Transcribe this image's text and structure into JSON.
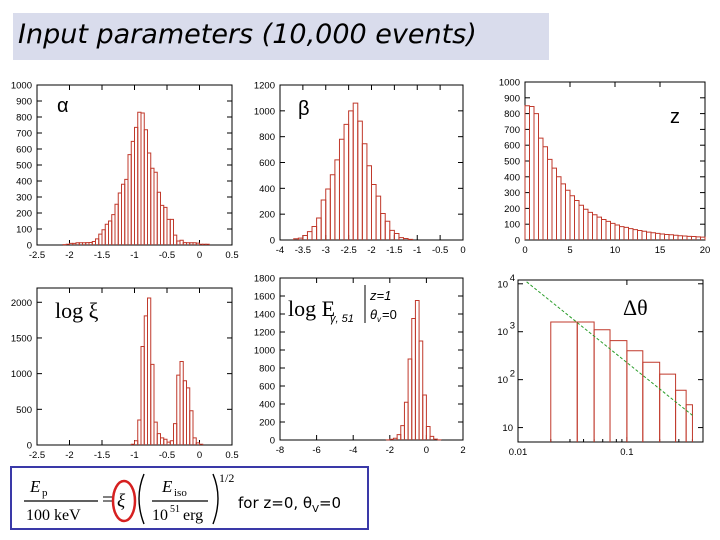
{
  "title": "Input parameters (10,000 events)",
  "footnote": {
    "text": "for z=0, θ",
    "subscript": "V",
    "suffix": "=0"
  },
  "formula": {
    "lhs_num": "E",
    "lhs_num_sub": "p",
    "lhs_den": "100 keV",
    "eq": "=",
    "xi": "ξ",
    "frac_num": "E",
    "frac_num_sub": "iso",
    "frac_den_a": "10",
    "frac_den_exp": "51",
    "frac_den_b": "erg",
    "power": "1/2"
  },
  "colors": {
    "histogram": "#c0392b",
    "fit_line": "#2a9d2a",
    "title_box": "#d9dcec",
    "frame_box": "#3a39a8",
    "highlight": "#d62020"
  },
  "chart_data": [
    {
      "id": "alpha",
      "type": "histogram",
      "label": "α",
      "xlim": [
        -2.5,
        0.5
      ],
      "ylim": [
        0,
        1000
      ],
      "xticks": [
        "-2.5",
        "-2",
        "-1.5",
        "-1",
        "-0.5",
        "0",
        "0.5"
      ],
      "xtick_values": [
        -2.5,
        -2,
        -1.5,
        -1,
        -0.5,
        0,
        0.5
      ],
      "yticks": [
        "0",
        "100",
        "200",
        "300",
        "400",
        "500",
        "600",
        "700",
        "800",
        "900",
        "1000"
      ],
      "ytick_values": [
        0,
        100,
        200,
        300,
        400,
        500,
        600,
        700,
        800,
        900,
        1000
      ],
      "bin_edges_start": -2.5,
      "bin_width": 0.05,
      "values": [
        0,
        0,
        0,
        0,
        0,
        0,
        0,
        0,
        2,
        5,
        10,
        10,
        14,
        14,
        14,
        15,
        16,
        22,
        38,
        68,
        95,
        130,
        150,
        190,
        255,
        325,
        380,
        410,
        565,
        648,
        735,
        830,
        825,
        720,
        575,
        480,
        455,
        330,
        248,
        235,
        160,
        160,
        62,
        25,
        30,
        15,
        14,
        14,
        14,
        12,
        5,
        5,
        5,
        0,
        0,
        0,
        0,
        0,
        0,
        0
      ]
    },
    {
      "id": "beta",
      "type": "histogram",
      "label": "β",
      "xlim": [
        -4,
        0
      ],
      "ylim": [
        0,
        1200
      ],
      "xticks": [
        "-4",
        "-3.5",
        "-3",
        "-2.5",
        "-2",
        "-1.5",
        "-1",
        "-0.5",
        "0"
      ],
      "xtick_values": [
        -4,
        -3.5,
        -3,
        -2.5,
        -2,
        -1.5,
        -1,
        -0.5,
        0
      ],
      "yticks": [
        "0",
        "200",
        "400",
        "600",
        "800",
        "1000",
        "1200"
      ],
      "ytick_values": [
        0,
        200,
        400,
        600,
        800,
        1000,
        1200
      ],
      "bin_edges_start": -4,
      "bin_width": 0.1,
      "values": [
        0,
        0,
        0,
        10,
        15,
        35,
        65,
        105,
        170,
        310,
        395,
        505,
        620,
        780,
        895,
        1000,
        1060,
        920,
        745,
        575,
        430,
        340,
        205,
        145,
        75,
        50,
        18,
        12,
        5,
        0,
        0,
        0,
        0,
        0,
        0,
        0,
        0,
        0,
        0,
        0
      ]
    },
    {
      "id": "z",
      "type": "histogram",
      "label": "z",
      "xlim": [
        0,
        20
      ],
      "ylim": [
        0,
        1000
      ],
      "xticks": [
        "0",
        "5",
        "10",
        "15",
        "20"
      ],
      "xtick_values": [
        0,
        5,
        10,
        15,
        20
      ],
      "yticks": [
        "0",
        "100",
        "200",
        "300",
        "400",
        "500",
        "600",
        "700",
        "800",
        "900",
        "1000"
      ],
      "ytick_values": [
        0,
        100,
        200,
        300,
        400,
        500,
        600,
        700,
        800,
        900,
        1000
      ],
      "bin_edges_start": 0,
      "bin_width": 0.5,
      "values": [
        850,
        845,
        800,
        645,
        590,
        510,
        455,
        400,
        355,
        315,
        280,
        250,
        220,
        195,
        175,
        160,
        145,
        130,
        118,
        105,
        95,
        85,
        80,
        72,
        66,
        60,
        55,
        50,
        46,
        42,
        38,
        35,
        33,
        30,
        27,
        25,
        23,
        22,
        20,
        18
      ]
    },
    {
      "id": "log_xi",
      "type": "histogram",
      "label": "log ξ",
      "xlim": [
        -2.5,
        0.5
      ],
      "ylim": [
        0,
        2200
      ],
      "xticks": [
        "-2.5",
        "-2",
        "-1.5",
        "-1",
        "-0.5",
        "0",
        "0.5"
      ],
      "xtick_values": [
        -2.5,
        -2,
        -1.5,
        -1,
        -0.5,
        0,
        0.5
      ],
      "yticks": [
        "0",
        "500",
        "1000",
        "1500",
        "2000"
      ],
      "ytick_values": [
        0,
        500,
        1000,
        1500,
        2000
      ],
      "bin_edges_start": -2.5,
      "bin_width": 0.05,
      "values": [
        0,
        0,
        0,
        0,
        0,
        0,
        0,
        0,
        0,
        0,
        0,
        0,
        0,
        0,
        0,
        0,
        0,
        0,
        0,
        0,
        0,
        0,
        0,
        0,
        0,
        0,
        0,
        0,
        0,
        10,
        60,
        350,
        1380,
        1810,
        2060,
        1130,
        320,
        160,
        100,
        80,
        40,
        60,
        300,
        980,
        1170,
        900,
        800,
        480,
        100,
        30,
        10,
        0,
        0,
        0,
        0,
        0,
        0,
        0,
        0,
        0
      ]
    },
    {
      "id": "log_e",
      "type": "histogram",
      "label": "log E",
      "label_sub": "γ, 51",
      "annotation_line1": "z=1",
      "annotation_line2": "θ",
      "annotation_line2_sub": "v",
      "annotation_line2_suffix": "=0",
      "xlim": [
        -8,
        2
      ],
      "ylim": [
        0,
        1800
      ],
      "xticks": [
        "-8",
        "-6",
        "-4",
        "-2",
        "0",
        "2"
      ],
      "xtick_values": [
        -8,
        -6,
        -4,
        -2,
        0,
        2
      ],
      "yticks": [
        "0",
        "200",
        "400",
        "600",
        "800",
        "1000",
        "1200",
        "1400",
        "1600",
        "1800"
      ],
      "ytick_values": [
        0,
        200,
        400,
        600,
        800,
        1000,
        1200,
        1400,
        1600,
        1800
      ],
      "bin_edges_start": -8,
      "bin_width": 0.2,
      "values": [
        0,
        0,
        0,
        0,
        0,
        0,
        0,
        0,
        0,
        0,
        0,
        0,
        0,
        0,
        0,
        0,
        0,
        0,
        0,
        0,
        0,
        0,
        0,
        0,
        0,
        0,
        0,
        0,
        0,
        2,
        8,
        20,
        60,
        160,
        420,
        900,
        1350,
        1550,
        1100,
        500,
        150,
        40,
        10,
        2,
        0,
        0,
        0,
        0,
        0,
        0
      ]
    },
    {
      "id": "delta_theta",
      "type": "histogram",
      "label": "Δθ",
      "xscale": "log",
      "yscale": "log",
      "xlim": [
        0.01,
        0.5
      ],
      "ylim": [
        5,
        12000
      ],
      "xticks": [
        "0.01",
        "0.1"
      ],
      "xtick_values": [
        0.01,
        0.1
      ],
      "yticks": [
        "10",
        "10",
        "10",
        "10"
      ],
      "ytick_exps": [
        "",
        "2",
        "3",
        "4"
      ],
      "ytick_values": [
        10,
        100,
        1000,
        10000
      ],
      "bin_edges": [
        0.02,
        0.035,
        0.05,
        0.07,
        0.1,
        0.14,
        0.2,
        0.28,
        0.35,
        0.4
      ],
      "values": [
        1600,
        1600,
        1100,
        650,
        400,
        230,
        130,
        60,
        30
      ],
      "fit_line": {
        "x": [
          0.012,
          0.4
        ],
        "y": [
          11000,
          18
        ]
      }
    }
  ]
}
